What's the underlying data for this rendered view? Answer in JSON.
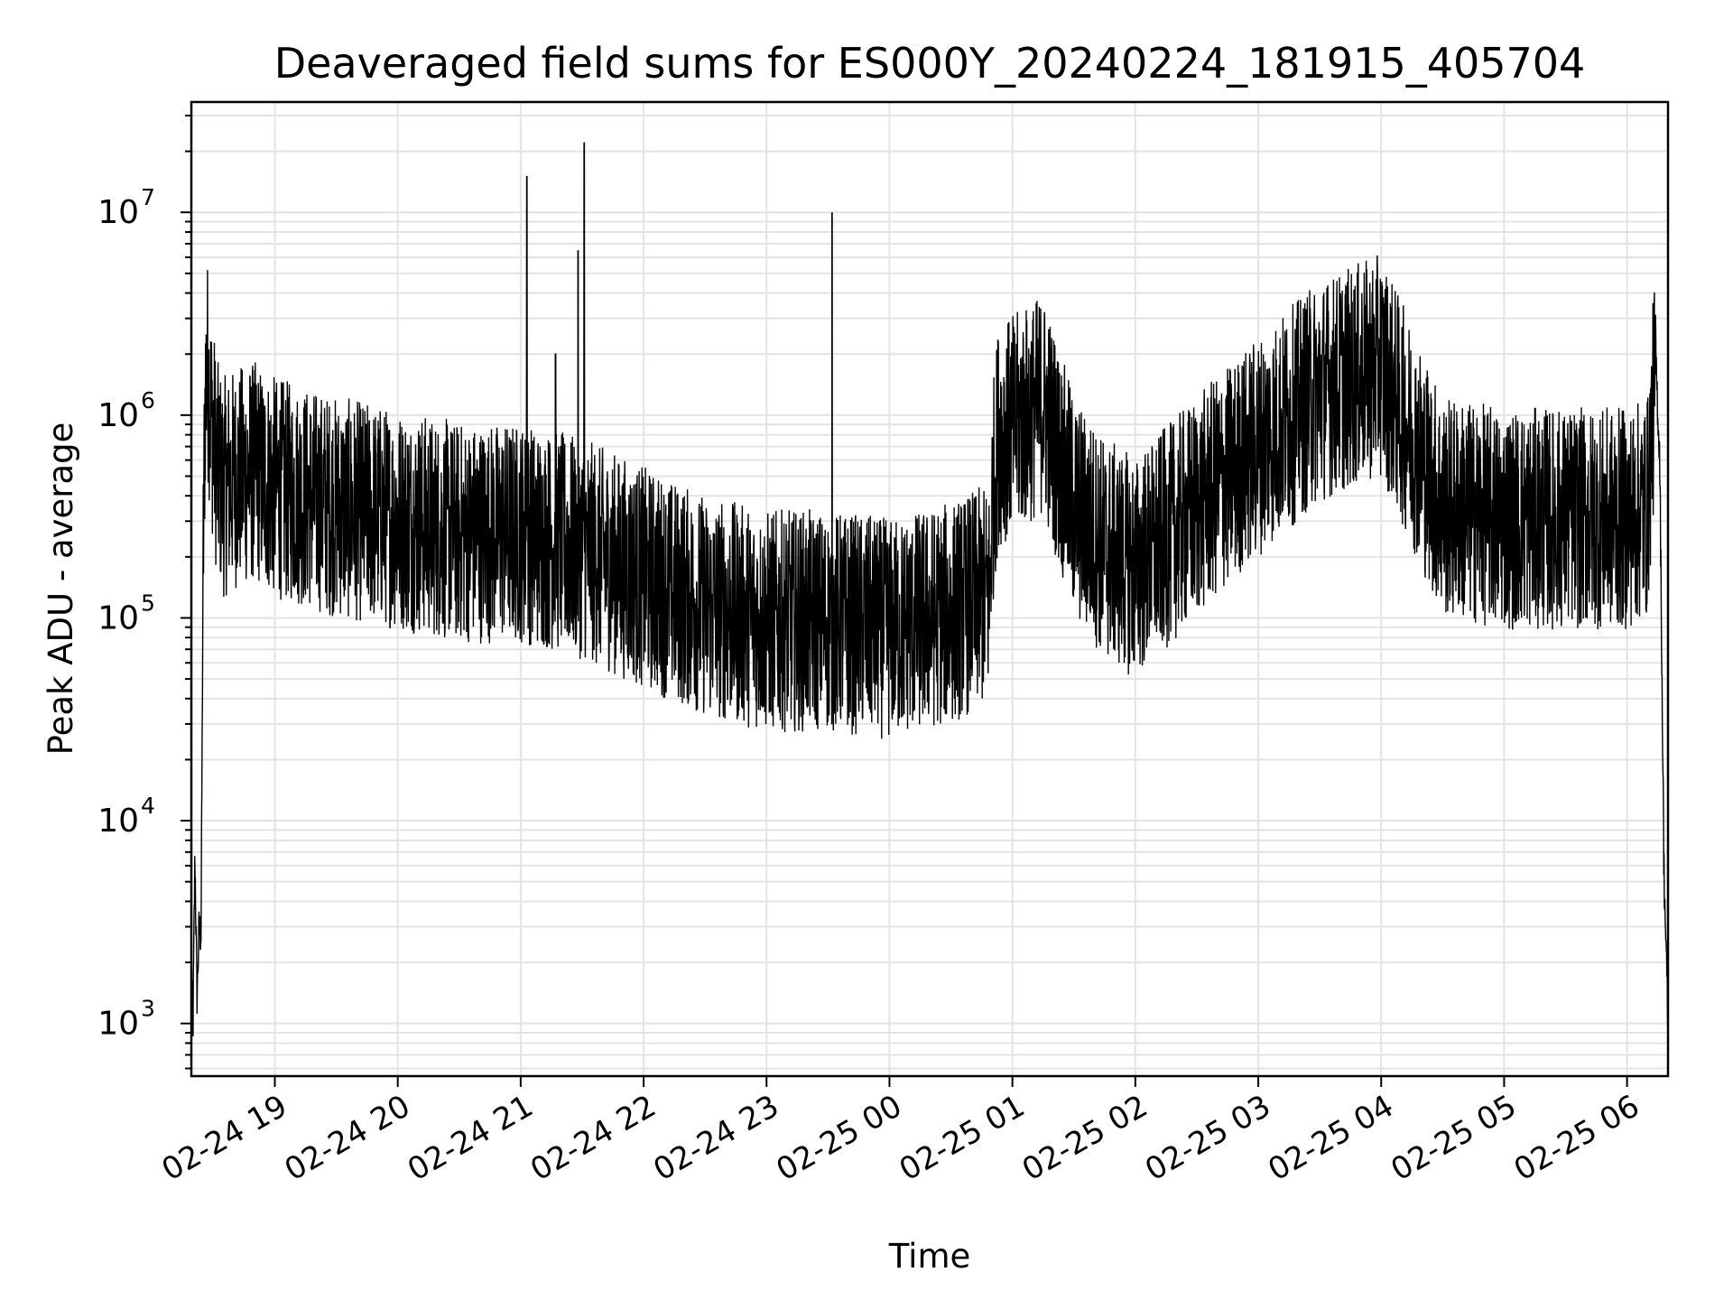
{
  "chart_data": {
    "type": "line",
    "title": "Deaveraged field sums for ES000Y_20240224_181915_405704",
    "xlabel": "Time",
    "ylabel": "Peak ADU - average",
    "yscale": "log",
    "ylim": [
      550,
      35000000
    ],
    "xlim": [
      "2024-02-24 18:19:15",
      "2024-02-25 06:20:00"
    ],
    "grid": true,
    "line_color": "#000000",
    "x_ticks": [
      {
        "t": "2024-02-24 19:00",
        "label": "02-24 19"
      },
      {
        "t": "2024-02-24 20:00",
        "label": "02-24 20"
      },
      {
        "t": "2024-02-24 21:00",
        "label": "02-24 21"
      },
      {
        "t": "2024-02-24 22:00",
        "label": "02-24 22"
      },
      {
        "t": "2024-02-24 23:00",
        "label": "02-24 23"
      },
      {
        "t": "2024-02-25 00:00",
        "label": "02-25 00"
      },
      {
        "t": "2024-02-25 01:00",
        "label": "02-25 01"
      },
      {
        "t": "2024-02-25 02:00",
        "label": "02-25 02"
      },
      {
        "t": "2024-02-25 03:00",
        "label": "02-25 03"
      },
      {
        "t": "2024-02-25 04:00",
        "label": "02-25 04"
      },
      {
        "t": "2024-02-25 05:00",
        "label": "02-25 05"
      },
      {
        "t": "2024-02-25 06:00",
        "label": "02-25 06"
      }
    ],
    "y_ticks": [
      {
        "value": 1000,
        "label": "10",
        "exp": "3"
      },
      {
        "value": 10000,
        "label": "10",
        "exp": "4"
      },
      {
        "value": 100000,
        "label": "10",
        "exp": "5"
      },
      {
        "value": 1000000,
        "label": "10",
        "exp": "6"
      },
      {
        "value": 10000000,
        "label": "10",
        "exp": "7"
      }
    ],
    "series": [
      {
        "x": [
          "2024-02-24 18:19:15",
          "2024-02-24 18:20:00",
          "2024-02-24 18:21:00",
          "2024-02-24 18:22:00",
          "2024-02-24 18:23:00",
          "2024-02-24 18:24:00",
          "2024-02-24 18:25:00",
          "2024-02-24 18:26:00",
          "2024-02-24 18:27:00",
          "2024-02-24 18:28:00",
          "2024-02-24 18:29:00",
          "2024-02-24 18:30:00",
          "2024-02-24 18:32:00",
          "2024-02-24 18:35:00",
          "2024-02-24 18:40:00",
          "2024-02-24 18:50:00",
          "2024-02-24 19:00:00",
          "2024-02-24 19:30:00",
          "2024-02-24 20:00:00",
          "2024-02-24 20:30:00",
          "2024-02-24 21:00:00",
          "2024-02-24 21:30:00",
          "2024-02-24 22:00:00",
          "2024-02-24 22:30:00",
          "2024-02-24 23:00:00",
          "2024-02-24 23:30:00",
          "2024-02-25 00:00:00",
          "2024-02-25 00:30:00",
          "2024-02-25 00:49:00",
          "2024-02-25 00:50:00",
          "2024-02-25 00:53:00",
          "2024-02-25 01:00:00",
          "2024-02-25 01:15:00",
          "2024-02-25 01:30:00",
          "2024-02-25 01:45:00",
          "2024-02-25 02:00:00",
          "2024-02-25 02:30:00",
          "2024-02-25 03:00:00",
          "2024-02-25 03:30:00",
          "2024-02-25 04:00:00",
          "2024-02-25 04:30:00",
          "2024-02-25 05:00:00",
          "2024-02-25 05:30:00",
          "2024-02-25 06:00:00",
          "2024-02-25 06:10:00",
          "2024-02-25 06:14:00",
          "2024-02-25 06:16:00",
          "2024-02-25 06:18:00",
          "2024-02-25 06:20:00"
        ],
        "y": [
          2000,
          900,
          7000,
          1400,
          3000,
          2800,
          200000,
          1500000,
          2000000,
          1500000,
          1100000,
          900000,
          600000,
          500000,
          550000,
          600000,
          500000,
          400000,
          350000,
          300000,
          300000,
          250000,
          180000,
          130000,
          110000,
          110000,
          100000,
          120000,
          150000,
          400000,
          900000,
          1000000,
          1300000,
          400000,
          250000,
          200000,
          400000,
          800000,
          1500000,
          2000000,
          400000,
          350000,
          350000,
          350000,
          400000,
          2000000,
          600000,
          6000,
          1000
        ]
      }
    ],
    "spikes": [
      {
        "x": "2024-02-24 21:03:00",
        "y": 15000000
      },
      {
        "x": "2024-02-24 21:17:00",
        "y": 2000000
      },
      {
        "x": "2024-02-24 21:28:00",
        "y": 6500000
      },
      {
        "x": "2024-02-24 21:31:00",
        "y": 22000000
      },
      {
        "x": "2024-02-24 23:32:00",
        "y": 10000000
      }
    ]
  }
}
